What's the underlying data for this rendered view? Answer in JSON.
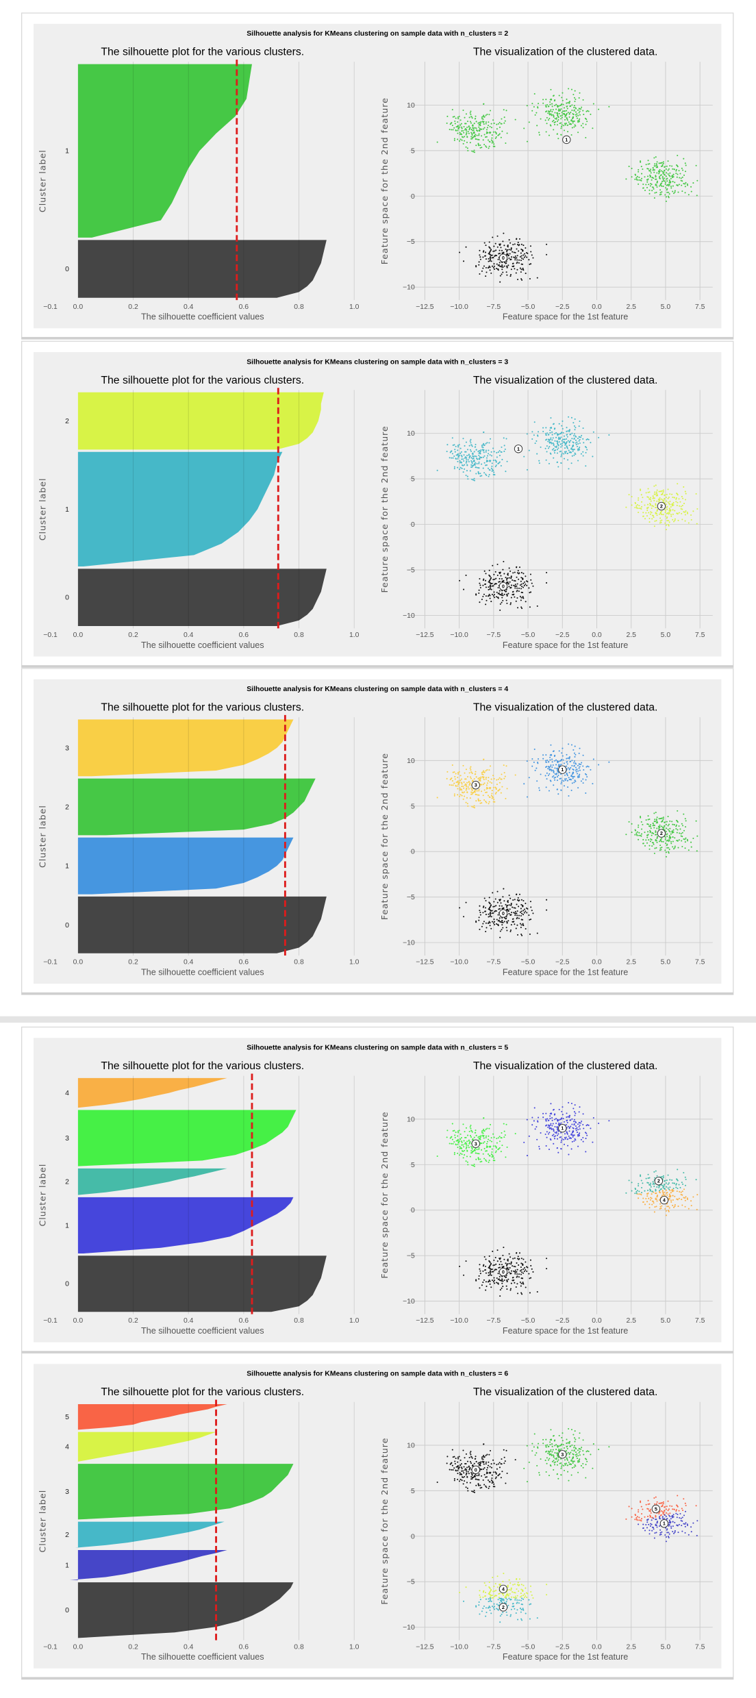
{
  "colors": {
    "page_background": "#ffffff",
    "panel_background": "#efefef",
    "average_line": "#dd1c1c",
    "grid": "#cbcbcb"
  },
  "chart_data": [
    {
      "type": "silhouette+scatter",
      "suptitle": "Silhouette analysis for KMeans clustering on sample data with n_clusters = 2",
      "left": {
        "title": "The silhouette plot for the various clusters.",
        "xlabel": "The silhouette coefficient values",
        "ylabel": "Cluster label",
        "xlim": [
          -0.1,
          1.0
        ],
        "xticks": [
          "−0.1",
          "0.0",
          "0.2",
          "0.4",
          "0.6",
          "0.8",
          "1.0"
        ],
        "average_silhouette": 0.575,
        "clusters": [
          {
            "label": "0",
            "size": 250,
            "color": "#454545",
            "values": [
              0.72,
              0.8,
              0.83,
              0.85,
              0.86,
              0.87,
              0.88,
              0.885,
              0.89,
              0.895,
              0.9
            ]
          },
          {
            "label": "1",
            "size": 750,
            "color": "#46c846",
            "values": [
              0.05,
              0.3,
              0.34,
              0.37,
              0.4,
              0.44,
              0.5,
              0.57,
              0.61,
              0.62,
              0.63
            ]
          }
        ]
      },
      "right": {
        "title": "The visualization of the clustered data.",
        "xlabel": "Feature space for the 1st feature",
        "ylabel": "Feature space for the 2nd feature",
        "xticks": [
          "−12.5",
          "−10.0",
          "−7.5",
          "−5.0",
          "−2.5",
          "0.0",
          "2.5",
          "5.0",
          "7.5"
        ],
        "yticks": [
          "−10",
          "−5",
          "0",
          "5",
          "10"
        ],
        "centroids": [
          {
            "label": "0",
            "x": -6.8,
            "y": -6.8
          },
          {
            "label": "1",
            "x": -2.2,
            "y": 6.2
          }
        ]
      }
    },
    {
      "type": "silhouette+scatter",
      "suptitle": "Silhouette analysis for KMeans clustering on sample data with n_clusters = 3",
      "left": {
        "title": "The silhouette plot for the various clusters.",
        "xlabel": "The silhouette coefficient values",
        "ylabel": "Cluster label",
        "xlim": [
          -0.1,
          1.0
        ],
        "xticks": [
          "−0.1",
          "0.0",
          "0.2",
          "0.4",
          "0.6",
          "0.8",
          "1.0"
        ],
        "average_silhouette": 0.725,
        "clusters": [
          {
            "label": "0",
            "size": 250,
            "color": "#454545",
            "values": [
              0.72,
              0.8,
              0.83,
              0.85,
              0.86,
              0.87,
              0.88,
              0.885,
              0.89,
              0.895,
              0.9
            ]
          },
          {
            "label": "1",
            "size": 500,
            "color": "#46b8c8",
            "values": [
              0.02,
              0.42,
              0.52,
              0.58,
              0.62,
              0.65,
              0.67,
              0.69,
              0.71,
              0.72,
              0.74
            ]
          },
          {
            "label": "2",
            "size": 250,
            "color": "#d8f347",
            "values": [
              0.72,
              0.8,
              0.83,
              0.85,
              0.86,
              0.87,
              0.875,
              0.88,
              0.88,
              0.885,
              0.89
            ]
          }
        ]
      },
      "right": {
        "title": "The visualization of the clustered data.",
        "xlabel": "Feature space for the 1st feature",
        "ylabel": "Feature space for the 2nd feature",
        "xticks": [
          "−12.5",
          "−10.0",
          "−7.5",
          "−5.0",
          "−2.5",
          "0.0",
          "2.5",
          "5.0",
          "7.5"
        ],
        "yticks": [
          "−10",
          "−5",
          "0",
          "5",
          "10"
        ],
        "centroids": [
          {
            "label": "0",
            "x": -6.8,
            "y": -6.8
          },
          {
            "label": "1",
            "x": -5.7,
            "y": 8.3
          },
          {
            "label": "2",
            "x": 4.7,
            "y": 2.0
          }
        ]
      }
    },
    {
      "type": "silhouette+scatter",
      "suptitle": "Silhouette analysis for KMeans clustering on sample data with n_clusters = 4",
      "left": {
        "title": "The silhouette plot for the various clusters.",
        "xlabel": "The silhouette coefficient values",
        "ylabel": "Cluster label",
        "xlim": [
          -0.1,
          1.0
        ],
        "xticks": [
          "−0.1",
          "0.0",
          "0.2",
          "0.4",
          "0.6",
          "0.8",
          "1.0"
        ],
        "average_silhouette": 0.75,
        "clusters": [
          {
            "label": "0",
            "size": 250,
            "color": "#454545",
            "values": [
              0.72,
              0.8,
              0.83,
              0.85,
              0.86,
              0.87,
              0.88,
              0.885,
              0.89,
              0.895,
              0.9
            ]
          },
          {
            "label": "1",
            "size": 250,
            "color": "#4696e0",
            "values": [
              0.05,
              0.5,
              0.6,
              0.65,
              0.69,
              0.72,
              0.74,
              0.75,
              0.76,
              0.77,
              0.78
            ]
          },
          {
            "label": "2",
            "size": 250,
            "color": "#46c846",
            "values": [
              0.1,
              0.6,
              0.7,
              0.75,
              0.78,
              0.8,
              0.82,
              0.83,
              0.84,
              0.85,
              0.86
            ]
          },
          {
            "label": "3",
            "size": 250,
            "color": "#f9cf46",
            "values": [
              0.05,
              0.5,
              0.6,
              0.65,
              0.69,
              0.72,
              0.74,
              0.75,
              0.76,
              0.77,
              0.78
            ]
          }
        ]
      },
      "right": {
        "title": "The visualization of the clustered data.",
        "xlabel": "Feature space for the 1st feature",
        "ylabel": "Feature space for the 2nd feature",
        "xticks": [
          "−12.5",
          "−10.0",
          "−7.5",
          "−5.0",
          "−2.5",
          "0.0",
          "2.5",
          "5.0",
          "7.5"
        ],
        "yticks": [
          "−10",
          "−5",
          "0",
          "5",
          "10"
        ],
        "centroids": [
          {
            "label": "0",
            "x": -6.8,
            "y": -6.8
          },
          {
            "label": "1",
            "x": -2.5,
            "y": 9.0
          },
          {
            "label": "2",
            "x": 4.7,
            "y": 2.0
          },
          {
            "label": "3",
            "x": -8.8,
            "y": 7.3
          }
        ]
      }
    },
    {
      "type": "silhouette+scatter",
      "suptitle": "Silhouette analysis for KMeans clustering on sample data with n_clusters = 5",
      "left": {
        "title": "The silhouette plot for the various clusters.",
        "xlabel": "The silhouette coefficient values",
        "ylabel": "Cluster label",
        "xlim": [
          -0.1,
          1.0
        ],
        "xticks": [
          "−0.1",
          "0.0",
          "0.2",
          "0.4",
          "0.6",
          "0.8",
          "1.0"
        ],
        "average_silhouette": 0.63,
        "clusters": [
          {
            "label": "0",
            "size": 250,
            "color": "#454545",
            "values": [
              0.7,
              0.8,
              0.83,
              0.85,
              0.86,
              0.87,
              0.88,
              0.885,
              0.89,
              0.895,
              0.9
            ]
          },
          {
            "label": "1",
            "size": 250,
            "color": "#4646dc",
            "values": [
              0.02,
              0.3,
              0.45,
              0.55,
              0.6,
              0.64,
              0.68,
              0.72,
              0.75,
              0.77,
              0.78
            ]
          },
          {
            "label": "2",
            "size": 118,
            "color": "#46bba8",
            "values": [
              0.0,
              0.1,
              0.17,
              0.23,
              0.28,
              0.33,
              0.37,
              0.42,
              0.46,
              0.5,
              0.54
            ]
          },
          {
            "label": "3",
            "size": 250,
            "color": "#46f046",
            "values": [
              0.0,
              0.45,
              0.57,
              0.63,
              0.68,
              0.71,
              0.74,
              0.76,
              0.77,
              0.78,
              0.79
            ]
          },
          {
            "label": "4",
            "size": 132,
            "color": "#f9b046",
            "values": [
              0.0,
              0.1,
              0.17,
              0.23,
              0.28,
              0.33,
              0.37,
              0.42,
              0.46,
              0.5,
              0.54
            ]
          }
        ]
      },
      "right": {
        "title": "The visualization of the clustered data.",
        "xlabel": "Feature space for the 1st feature",
        "ylabel": "Feature space for the 2nd feature",
        "xticks": [
          "−12.5",
          "−10.0",
          "−7.5",
          "−5.0",
          "−2.5",
          "0.0",
          "2.5",
          "5.0",
          "7.5"
        ],
        "yticks": [
          "−10",
          "−5",
          "0",
          "5",
          "10"
        ],
        "centroids": [
          {
            "label": "0",
            "x": -6.8,
            "y": -6.8
          },
          {
            "label": "1",
            "x": -2.5,
            "y": 9.0
          },
          {
            "label": "2",
            "x": 4.5,
            "y": 3.2
          },
          {
            "label": "3",
            "x": -8.8,
            "y": 7.3
          },
          {
            "label": "4",
            "x": 4.9,
            "y": 1.1
          }
        ]
      }
    },
    {
      "type": "silhouette+scatter",
      "suptitle": "Silhouette analysis for KMeans clustering on sample data with n_clusters = 6",
      "left": {
        "title": "The silhouette plot for the various clusters.",
        "xlabel": "The silhouette coefficient values",
        "ylabel": "Cluster label",
        "xlim": [
          -0.1,
          1.0
        ],
        "xticks": [
          "−0.1",
          "0.0",
          "0.2",
          "0.4",
          "0.6",
          "0.8",
          "1.0"
        ],
        "average_silhouette": 0.5,
        "clusters": [
          {
            "label": "0",
            "size": 250,
            "color": "#454545",
            "values": [
              0.0,
              0.35,
              0.5,
              0.58,
              0.63,
              0.67,
              0.7,
              0.73,
              0.75,
              0.77,
              0.78
            ]
          },
          {
            "label": "1",
            "size": 135,
            "color": "#4646c8",
            "values": [
              -0.03,
              0.1,
              0.17,
              0.22,
              0.27,
              0.32,
              0.37,
              0.41,
              0.45,
              0.5,
              0.54
            ]
          },
          {
            "label": "2",
            "size": 117,
            "color": "#46b8c8",
            "values": [
              -0.01,
              0.1,
              0.18,
              0.24,
              0.3,
              0.35,
              0.4,
              0.44,
              0.47,
              0.5,
              0.53
            ]
          },
          {
            "label": "3",
            "size": 250,
            "color": "#46c846",
            "values": [
              0.0,
              0.4,
              0.55,
              0.62,
              0.67,
              0.7,
              0.72,
              0.74,
              0.76,
              0.77,
              0.78
            ]
          },
          {
            "label": "4",
            "size": 133,
            "color": "#d8f347",
            "values": [
              0.0,
              0.06,
              0.12,
              0.18,
              0.24,
              0.3,
              0.35,
              0.4,
              0.44,
              0.47,
              0.5
            ]
          },
          {
            "label": "5",
            "size": 115,
            "color": "#f96446",
            "values": [
              0.0,
              0.12,
              0.2,
              0.23,
              0.28,
              0.33,
              0.37,
              0.42,
              0.47,
              0.5,
              0.54
            ]
          }
        ]
      },
      "right": {
        "title": "The visualization of the clustered data.",
        "xlabel": "Feature space for the 1st feature",
        "ylabel": "Feature space for the 2nd feature",
        "xticks": [
          "−12.5",
          "−10.0",
          "−7.5",
          "−5.0",
          "−2.5",
          "0.0",
          "2.5",
          "5.0",
          "7.5"
        ],
        "yticks": [
          "−10",
          "−5",
          "0",
          "5",
          "10"
        ],
        "centroids": [
          {
            "label": "0",
            "x": -8.8,
            "y": 7.3
          },
          {
            "label": "1",
            "x": 4.9,
            "y": 1.4
          },
          {
            "label": "2",
            "x": -6.8,
            "y": -7.8
          },
          {
            "label": "3",
            "x": -2.5,
            "y": 9.0
          },
          {
            "label": "4",
            "x": -6.8,
            "y": -5.8
          },
          {
            "label": "5",
            "x": 4.3,
            "y": 3.0
          }
        ]
      }
    }
  ],
  "scatter_blobs": [
    {
      "center": [
        -6.8,
        -6.8
      ],
      "std": 1.0,
      "count": 250
    },
    {
      "center": [
        -8.8,
        7.3
      ],
      "std": 1.0,
      "count": 250
    },
    {
      "center": [
        -2.5,
        9.0
      ],
      "std": 1.0,
      "count": 250
    },
    {
      "center": [
        4.7,
        2.0
      ],
      "std": 1.0,
      "count": 250
    }
  ]
}
